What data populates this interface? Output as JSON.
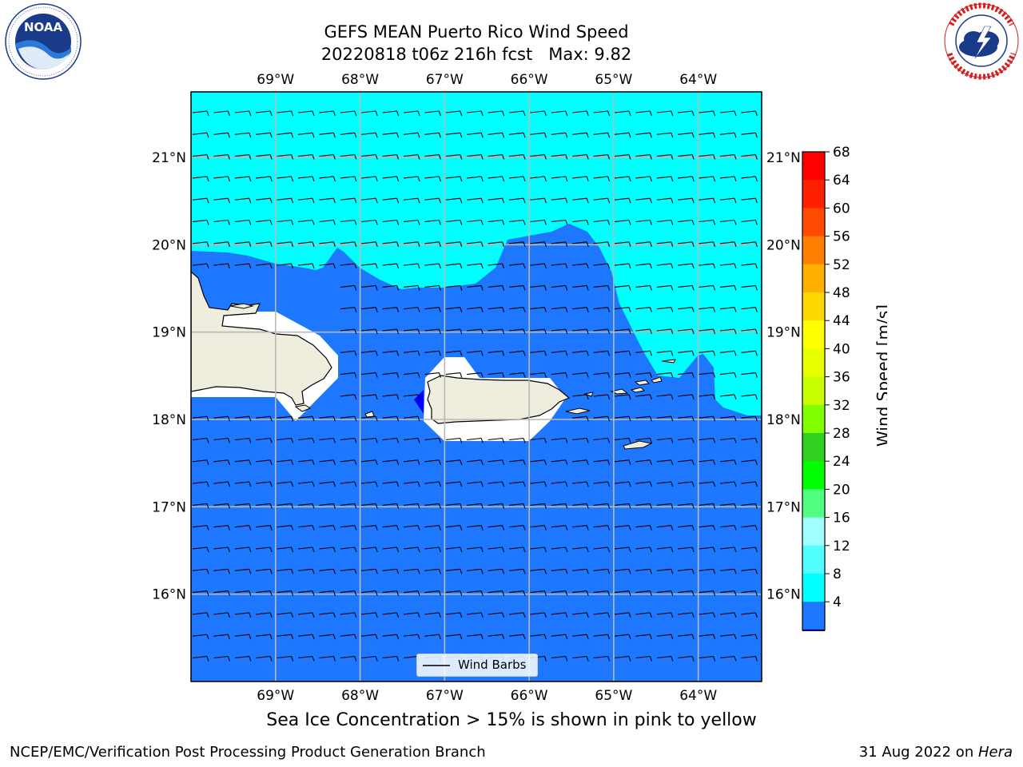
{
  "header": {
    "title": "GEFS MEAN Puerto Rico Wind Speed",
    "subtitle": "20220818 t06z 216h fcst",
    "max_label": "Max: 9.82"
  },
  "logos": {
    "left": {
      "name": "NOAA",
      "ring_text": "NATIONAL OCEANIC AND ATMOSPHERIC ADMINISTRATION · U.S. DEPARTMENT OF COMMERCE"
    },
    "right": {
      "ring_text": "NATIONAL WEATHER SERVICE"
    }
  },
  "map": {
    "lon_labels": [
      "69°W",
      "68°W",
      "67°W",
      "66°W",
      "65°W",
      "64°W"
    ],
    "lat_labels": [
      "21°N",
      "20°N",
      "19°N",
      "18°N",
      "17°N",
      "16°N"
    ],
    "lon_range": [
      -70,
      -63.25
    ],
    "lat_range": [
      15,
      21.75
    ],
    "ocean_colors": {
      "low": "#1e78ff",
      "mid": "#00ffff",
      "land": "#efedde"
    },
    "legend": {
      "label": "Wind Barbs"
    }
  },
  "colorbar": {
    "label": "Wind Speed [m/s]",
    "ticks": [
      "68",
      "64",
      "60",
      "56",
      "52",
      "48",
      "44",
      "40",
      "36",
      "32",
      "28",
      "24",
      "20",
      "16",
      "12",
      "8",
      "4"
    ],
    "colors": [
      "#ff0000",
      "#ff2000",
      "#ff4b00",
      "#ff8000",
      "#ffb000",
      "#ffd800",
      "#ffff00",
      "#e8ff00",
      "#c8ff00",
      "#80ff00",
      "#30d020",
      "#00ff00",
      "#50ff80",
      "#a0ffff",
      "#50ffff",
      "#00ffff",
      "#1e78ff"
    ],
    "extend_color": "#0000ff"
  },
  "caption": "Sea Ice Concentration > 15% is shown in pink to yellow",
  "footer": {
    "left": "NCEP/EMC/Verification Post Processing Product Generation Branch",
    "right_prefix": "31 Aug 2022 on ",
    "right_host": "Hera"
  }
}
